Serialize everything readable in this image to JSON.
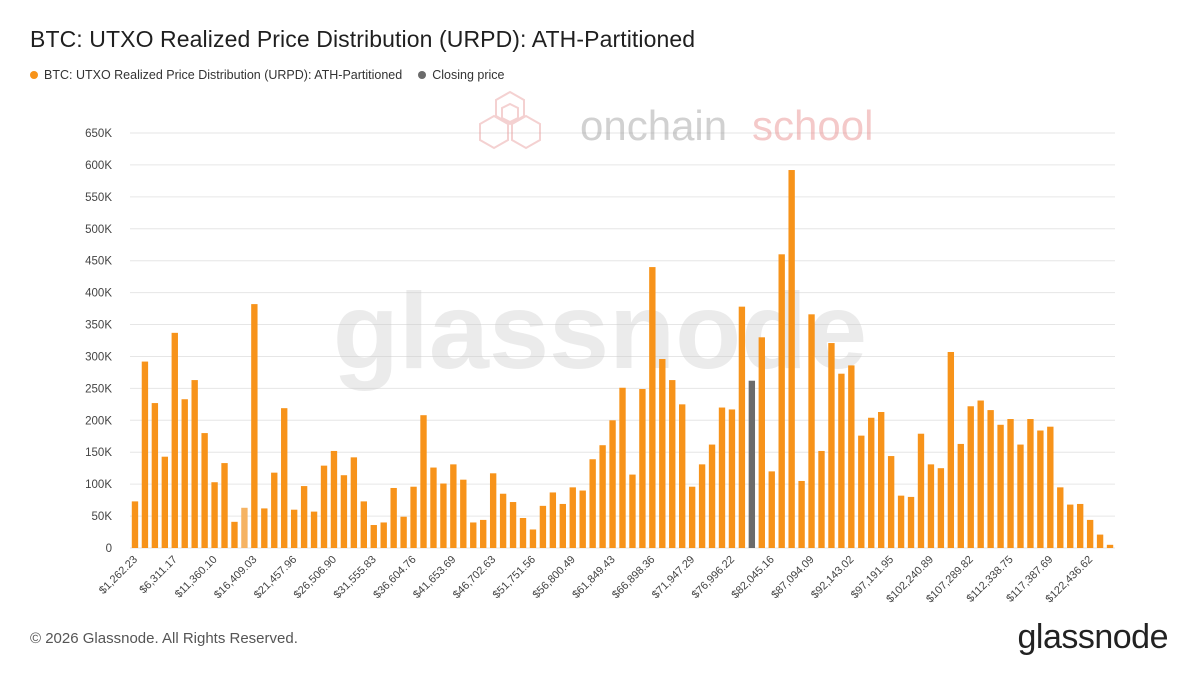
{
  "title": "BTC: UTXO Realized Price Distribution (URPD): ATH-Partitioned",
  "legend": [
    {
      "label": "BTC: UTXO Realized Price Distribution (URPD): ATH-Partitioned",
      "color": "#f7931a"
    },
    {
      "label": "Closing price",
      "color": "#6b6b6b"
    }
  ],
  "footer": "© 2026 Glassnode. All Rights Reserved.",
  "brand": "glassnode",
  "watermarks": {
    "center": "glassnode",
    "top_prefix": "onchain",
    "top_suffix": "school"
  },
  "colors": {
    "bar": "#f7931a",
    "bar_light": "#f5b363",
    "closing": "#6b6b6b",
    "grid": "#e6e6e6"
  },
  "chart_data": {
    "type": "bar",
    "ylim": [
      0,
      650000
    ],
    "yticks": [
      {
        "value": 0,
        "label": "0"
      },
      {
        "value": 50000,
        "label": "50K"
      },
      {
        "value": 100000,
        "label": "100K"
      },
      {
        "value": 150000,
        "label": "150K"
      },
      {
        "value": 200000,
        "label": "200K"
      },
      {
        "value": 250000,
        "label": "250K"
      },
      {
        "value": 300000,
        "label": "300K"
      },
      {
        "value": 350000,
        "label": "350K"
      },
      {
        "value": 400000,
        "label": "400K"
      },
      {
        "value": 450000,
        "label": "450K"
      },
      {
        "value": 500000,
        "label": "500K"
      },
      {
        "value": 550000,
        "label": "550K"
      },
      {
        "value": 600000,
        "label": "600K"
      },
      {
        "value": 650000,
        "label": "650K"
      }
    ],
    "xtick_labels": [
      "$1,262.23",
      "$6,311.17",
      "$11,360.10",
      "$16,409.03",
      "$21,457.96",
      "$26,506.90",
      "$31,555.83",
      "$36,604.76",
      "$41,653.69",
      "$46,702.63",
      "$51,751.56",
      "$56,800.49",
      "$61,849.43",
      "$66,898.36",
      "$71,947.29",
      "$76,996.22",
      "$82,045.16",
      "$87,094.09",
      "$92,143.02",
      "$97,191.95",
      "$102,240.89",
      "$107,289.82",
      "$112,338.75",
      "$117,387.69",
      "$122,436.62"
    ],
    "xtick_every": 4,
    "closing_index": 62,
    "light_index": 11,
    "values": [
      73000,
      292000,
      227000,
      143000,
      337000,
      233000,
      263000,
      180000,
      103000,
      133000,
      41000,
      63000,
      382000,
      62000,
      118000,
      219000,
      60000,
      97000,
      57000,
      129000,
      152000,
      114000,
      142000,
      73000,
      36000,
      40000,
      94000,
      49000,
      96000,
      208000,
      126000,
      101000,
      131000,
      107000,
      40000,
      44000,
      117000,
      85000,
      72000,
      47000,
      29000,
      66000,
      87000,
      69000,
      95000,
      90000,
      139000,
      161000,
      200000,
      251000,
      115000,
      249000,
      440000,
      296000,
      263000,
      225000,
      96000,
      131000,
      162000,
      220000,
      217000,
      378000,
      262000,
      330000,
      120000,
      460000,
      592000,
      105000,
      366000,
      152000,
      321000,
      273000,
      286000,
      176000,
      204000,
      213000,
      144000,
      82000,
      80000,
      179000,
      131000,
      125000,
      307000,
      163000,
      222000,
      231000,
      216000,
      193000,
      202000,
      162000,
      202000,
      184000,
      190000,
      95000,
      68000,
      69000,
      44000,
      21000,
      5000
    ]
  }
}
